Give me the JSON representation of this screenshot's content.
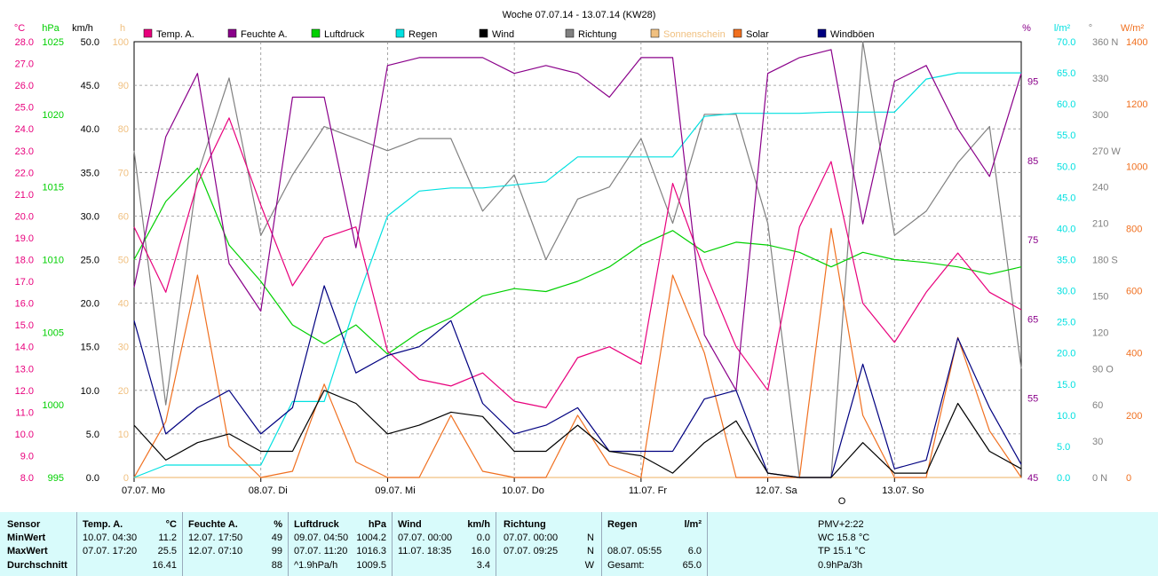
{
  "title": "Woche 07.07.14 - 13.07.14 (KW28)",
  "colors": {
    "temp": "#e8007c",
    "feuchte": "#8a008a",
    "luftdruck": "#00d000",
    "regen": "#00e0e0",
    "wind": "#000000",
    "richtung": "#808080",
    "sonnenschein": "#f0c080",
    "solar": "#f07020",
    "windboeen": "#000080",
    "grid": "#909090",
    "stats_bg": "#d8fbfb"
  },
  "legend": [
    {
      "key": "temp",
      "label": "Temp. A."
    },
    {
      "key": "feuchte",
      "label": "Feuchte A."
    },
    {
      "key": "luftdruck",
      "label": "Luftdruck"
    },
    {
      "key": "regen",
      "label": "Regen"
    },
    {
      "key": "wind",
      "label": "Wind"
    },
    {
      "key": "richtung",
      "label": "Richtung"
    },
    {
      "key": "sonnenschein",
      "label": "Sonnenschein"
    },
    {
      "key": "solar",
      "label": "Solar"
    },
    {
      "key": "windboeen",
      "label": "Windböen"
    }
  ],
  "axes": {
    "temp": {
      "unit": "°C",
      "ticks": [
        "28.0",
        "27.0",
        "26.0",
        "25.0",
        "24.0",
        "23.0",
        "22.0",
        "21.0",
        "20.0",
        "19.0",
        "18.0",
        "17.0",
        "16.0",
        "15.0",
        "14.0",
        "13.0",
        "12.0",
        "11.0",
        "10.0",
        "9.0",
        "8.0"
      ],
      "range": [
        8,
        28
      ]
    },
    "luftdruck": {
      "unit": "hPa",
      "ticks": [
        "1025",
        "1020",
        "1015",
        "1010",
        "1005",
        "1000",
        "995"
      ],
      "range": [
        995,
        1025
      ]
    },
    "wind": {
      "unit": "km/h",
      "ticks": [
        "50.0",
        "45.0",
        "40.0",
        "35.0",
        "30.0",
        "25.0",
        "20.0",
        "15.0",
        "10.0",
        "5.0",
        "0.0"
      ],
      "range": [
        0,
        50
      ]
    },
    "sonnenschein": {
      "unit": "h",
      "ticks": [
        "100",
        "90",
        "80",
        "70",
        "60",
        "50",
        "40",
        "30",
        "20",
        "10",
        "0"
      ],
      "range": [
        0,
        100
      ]
    },
    "feuchte": {
      "unit": "%",
      "ticks": [
        "95",
        "85",
        "75",
        "65",
        "55",
        "45"
      ],
      "range": [
        45,
        100
      ]
    },
    "regen": {
      "unit": "l/m²",
      "ticks": [
        "70.0",
        "65.0",
        "60.0",
        "55.0",
        "50.0",
        "45.0",
        "40.0",
        "35.0",
        "30.0",
        "25.0",
        "20.0",
        "15.0",
        "10.0",
        "5.0",
        "0.0"
      ],
      "range": [
        0,
        70
      ]
    },
    "richtung": {
      "unit": "°",
      "ticks": [
        "360 N",
        "330",
        "300",
        "270 W",
        "240",
        "210",
        "180 S",
        "150",
        "120",
        "90 O",
        "60",
        "30",
        "0 N"
      ],
      "range": [
        0,
        360
      ]
    },
    "solar": {
      "unit": "W/m²",
      "ticks": [
        "1400",
        "1200",
        "1000",
        "800",
        "600",
        "400",
        "200",
        "0"
      ],
      "range": [
        0,
        1400
      ]
    },
    "days": [
      "07.07. Mo",
      "08.07. Di",
      "09.07. Mi",
      "10.07. Do",
      "11.07. Fr",
      "12.07. Sa",
      "13.07. So"
    ]
  },
  "marker_label": "O",
  "chart_data": {
    "type": "line",
    "title": "Woche 07.07.14 - 13.07.14 (KW28)",
    "x_unit": "hours since 07.07. 00:00",
    "hours": [
      0,
      6,
      12,
      18,
      24,
      30,
      36,
      42,
      48,
      54,
      60,
      66,
      72,
      78,
      84,
      90,
      96,
      102,
      108,
      114,
      120,
      126,
      132,
      138,
      144,
      150,
      156,
      162,
      168
    ],
    "series": [
      {
        "name": "Temp. A.",
        "unit": "°C",
        "values": [
          19.5,
          16.5,
          21.5,
          24.5,
          20.5,
          16.8,
          19.0,
          19.5,
          13.8,
          12.5,
          12.2,
          12.8,
          11.5,
          11.2,
          13.5,
          14.0,
          13.2,
          21.5,
          17.5,
          14.0,
          12.0,
          19.5,
          22.5,
          16.0,
          14.2,
          16.5,
          18.3,
          16.5,
          15.7
        ]
      },
      {
        "name": "Feuchte A.",
        "unit": "%",
        "values": [
          69,
          88,
          96,
          72,
          66,
          93,
          93,
          74,
          97,
          98,
          98,
          98,
          96,
          97,
          96,
          93,
          98,
          98,
          63,
          56,
          96,
          98,
          99,
          77,
          95,
          97,
          89,
          83,
          96
        ]
      },
      {
        "name": "Luftdruck",
        "unit": "hPa",
        "values": [
          1010.0,
          1014.0,
          1016.3,
          1011.0,
          1008.5,
          1005.5,
          1004.2,
          1005.5,
          1003.5,
          1005.0,
          1006.0,
          1007.5,
          1008.0,
          1007.8,
          1008.5,
          1009.5,
          1011.0,
          1012.0,
          1010.5,
          1011.2,
          1011.0,
          1010.5,
          1009.5,
          1010.5,
          1010.0,
          1009.8,
          1009.5,
          1009.0,
          1009.5
        ]
      },
      {
        "name": "Regen",
        "unit": "l/m²",
        "values": [
          0,
          2.0,
          2.0,
          2.0,
          2.0,
          12.2,
          12.2,
          28.0,
          42.0,
          46.0,
          46.5,
          46.5,
          47.0,
          47.5,
          51.5,
          51.5,
          51.5,
          51.5,
          58.0,
          58.5,
          58.5,
          58.5,
          58.7,
          58.7,
          58.7,
          64.0,
          65.0,
          65.0,
          65.0
        ]
      },
      {
        "name": "Wind",
        "unit": "km/h",
        "values": [
          6.0,
          2.0,
          4.0,
          5.0,
          3.0,
          3.0,
          10.0,
          8.5,
          5.0,
          6.0,
          7.5,
          7.0,
          3.0,
          3.0,
          6.0,
          3.0,
          2.5,
          0.5,
          4.0,
          6.5,
          0.5,
          0.0,
          0.0,
          4.0,
          0.5,
          0.5,
          8.5,
          3.0,
          1.0
        ]
      },
      {
        "name": "Windböen",
        "unit": "km/h",
        "values": [
          18.0,
          5.0,
          8.0,
          10.0,
          5.0,
          8.0,
          22.0,
          12.0,
          14.0,
          15.0,
          18.0,
          8.5,
          5.0,
          6.0,
          8.0,
          3.0,
          3.0,
          3.0,
          9.0,
          10.0,
          0.5,
          0.0,
          0.0,
          13.0,
          1.0,
          2.0,
          16.0,
          8.0,
          1.5
        ]
      },
      {
        "name": "Richtung",
        "unit": "°",
        "values": [
          270,
          60,
          250,
          330,
          200,
          250,
          290,
          280,
          270,
          280,
          280,
          220,
          250,
          180,
          230,
          240,
          280,
          210,
          300,
          300,
          210,
          0,
          0,
          360,
          200,
          220,
          260,
          290,
          90
        ]
      },
      {
        "name": "Sonnenschein",
        "unit": "h",
        "values": [
          0,
          0,
          0,
          0,
          0,
          0,
          0,
          0,
          0,
          0,
          0,
          0,
          0,
          0,
          0,
          0,
          0,
          0,
          0,
          0,
          0,
          0,
          0,
          0,
          0,
          0,
          0,
          0,
          0
        ]
      },
      {
        "name": "Solar",
        "unit": "W/m²",
        "values": [
          0,
          180,
          650,
          100,
          0,
          20,
          300,
          50,
          0,
          0,
          200,
          20,
          0,
          0,
          200,
          40,
          0,
          650,
          400,
          0,
          0,
          0,
          800,
          200,
          0,
          0,
          450,
          150,
          0
        ]
      }
    ]
  },
  "stats": {
    "sensor": {
      "header": "Sensor",
      "rows": [
        "MinWert",
        "MaxWert",
        "Durchschnitt"
      ]
    },
    "temp": {
      "header": "Temp. A.",
      "unit": "°C",
      "rows": [
        [
          "10.07.  04:30",
          "11.2"
        ],
        [
          "07.07.  17:20",
          "25.5"
        ],
        [
          "",
          "16.41"
        ]
      ]
    },
    "feuchte": {
      "header": "Feuchte A.",
      "unit": "%",
      "rows": [
        [
          "12.07.  17:50",
          "49"
        ],
        [
          "12.07.  07:10",
          "99"
        ],
        [
          "",
          "88"
        ]
      ]
    },
    "luftdruck": {
      "header": "Luftdruck",
      "unit": "hPa",
      "rows": [
        [
          "09.07.  04:50",
          "1004.2"
        ],
        [
          "07.07.  11:20",
          "1016.3"
        ],
        [
          "^1.9hPa/h",
          "1009.5"
        ]
      ]
    },
    "wind": {
      "header": "Wind",
      "unit": "km/h",
      "rows": [
        [
          "07.07.  00:00",
          "0.0"
        ],
        [
          "11.07.  18:35",
          "16.0"
        ],
        [
          "",
          "3.4"
        ]
      ]
    },
    "richtung": {
      "header": "Richtung",
      "rows": [
        [
          "07.07.  00:00",
          "N"
        ],
        [
          "07.07.  09:25",
          "N"
        ],
        [
          "",
          "W"
        ]
      ]
    },
    "regen": {
      "header": "Regen",
      "unit": "l/m²",
      "rows": [
        [
          "",
          ""
        ],
        [
          "08.07.  05:55",
          "6.0"
        ],
        [
          "Gesamt:",
          "65.0"
        ]
      ]
    },
    "pmv": {
      "header": "PMV+2:22",
      "rows": [
        "WC 15.8 °C",
        "TP 15.1 °C",
        "0.9hPa/3h"
      ]
    }
  }
}
